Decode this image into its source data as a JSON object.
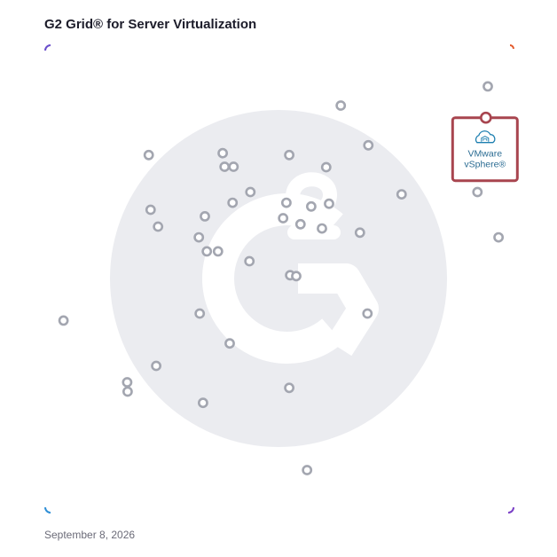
{
  "header": {
    "title": "G2 Grid® for Server Virtualization"
  },
  "footer": {
    "date": "September 8, 2026"
  },
  "colors": {
    "frame_left": "#3f6fd4",
    "frame_right": "#e3592a",
    "frame_top": "#e3592a",
    "frame_bottom": "#7a3fc6",
    "watermark": "#ebecf0",
    "dot_stroke": "#a3a6b0",
    "highlight": "#a8454f"
  },
  "chart_data": {
    "type": "scatter",
    "title": "G2 Grid® for Server Virtualization",
    "xlabel": "",
    "ylabel": "",
    "xlim": [
      0,
      100
    ],
    "ylim": [
      0,
      100
    ],
    "grid": "quadrants",
    "series": [
      {
        "points": [
          {
            "x": 94.5,
            "y": 91.2
          },
          {
            "x": 63.1,
            "y": 87.1
          },
          {
            "x": 69.0,
            "y": 78.6
          },
          {
            "x": 22.1,
            "y": 76.5
          },
          {
            "x": 37.9,
            "y": 76.9
          },
          {
            "x": 52.1,
            "y": 76.5
          },
          {
            "x": 38.3,
            "y": 74.0
          },
          {
            "x": 60.0,
            "y": 73.9
          },
          {
            "x": 40.2,
            "y": 74.0
          },
          {
            "x": 76.1,
            "y": 68.1
          },
          {
            "x": 92.3,
            "y": 68.6
          },
          {
            "x": 43.8,
            "y": 68.6
          },
          {
            "x": 40.0,
            "y": 66.3
          },
          {
            "x": 51.5,
            "y": 66.3
          },
          {
            "x": 56.8,
            "y": 65.5
          },
          {
            "x": 60.6,
            "y": 66.1
          },
          {
            "x": 22.5,
            "y": 64.8
          },
          {
            "x": 34.1,
            "y": 63.4
          },
          {
            "x": 50.8,
            "y": 63.0
          },
          {
            "x": 54.5,
            "y": 61.7
          },
          {
            "x": 59.1,
            "y": 60.8
          },
          {
            "x": 67.2,
            "y": 59.9
          },
          {
            "x": 24.1,
            "y": 61.2
          },
          {
            "x": 32.8,
            "y": 58.9
          },
          {
            "x": 96.8,
            "y": 58.9
          },
          {
            "x": 34.5,
            "y": 55.9
          },
          {
            "x": 36.9,
            "y": 55.9
          },
          {
            "x": 43.6,
            "y": 53.8
          },
          {
            "x": 52.3,
            "y": 50.8
          },
          {
            "x": 53.6,
            "y": 50.6
          },
          {
            "x": 33.0,
            "y": 42.6
          },
          {
            "x": 68.8,
            "y": 42.6
          },
          {
            "x": 3.9,
            "y": 41.1
          },
          {
            "x": 39.4,
            "y": 36.2
          },
          {
            "x": 23.7,
            "y": 31.4
          },
          {
            "x": 17.5,
            "y": 27.9
          },
          {
            "x": 17.6,
            "y": 25.9
          },
          {
            "x": 52.1,
            "y": 26.7
          },
          {
            "x": 33.7,
            "y": 23.5
          },
          {
            "x": 55.9,
            "y": 9.1
          }
        ]
      },
      {
        "highlight": true,
        "label_line1": "VMware",
        "label_line2": "vSphere®",
        "points": [
          {
            "x": 94.1,
            "y": 84.5
          }
        ]
      }
    ]
  }
}
